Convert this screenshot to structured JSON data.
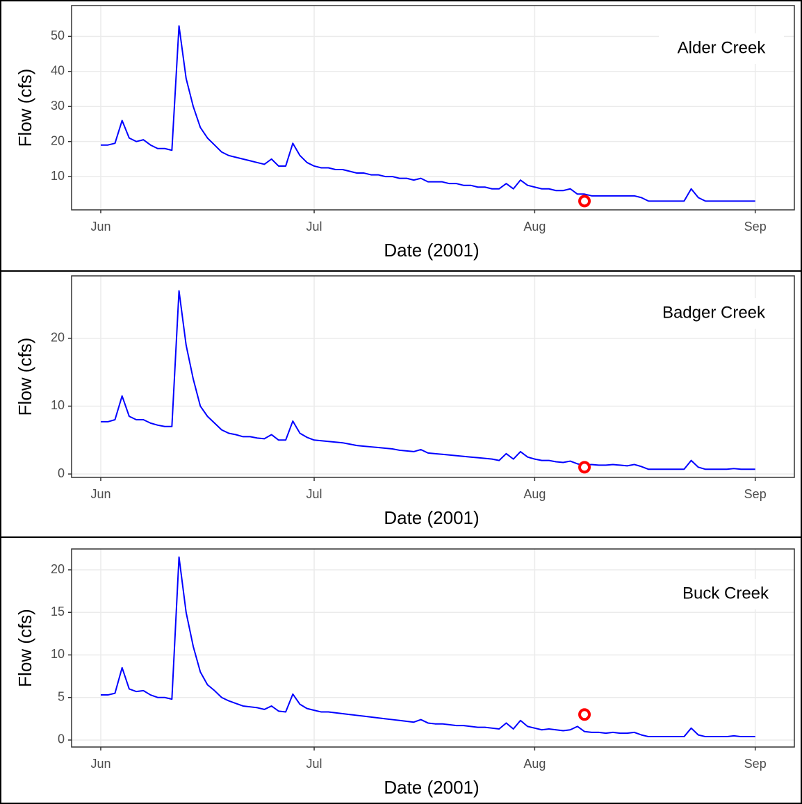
{
  "chart_data": [
    {
      "type": "line",
      "annotation": "Alder Creek",
      "xlabel": "Date (2001)",
      "ylabel": "Flow (cfs)",
      "xlim": [
        -4.1,
        97.5
      ],
      "xticks": [
        {
          "value": 0,
          "label": "Jun"
        },
        {
          "value": 30,
          "label": "Jul"
        },
        {
          "value": 61,
          "label": "Aug"
        },
        {
          "value": 92,
          "label": "Sep"
        }
      ],
      "ylim": [
        0.5,
        58.8
      ],
      "yticks": [
        10,
        20,
        30,
        40,
        50
      ],
      "grid": true,
      "series": [
        {
          "color": "#0000ff",
          "x": [
            0,
            1,
            2,
            3,
            4,
            5,
            6,
            7,
            8,
            9,
            10,
            11,
            12,
            13,
            14,
            15,
            16,
            17,
            18,
            19,
            20,
            21,
            22,
            23,
            24,
            25,
            26,
            27,
            28,
            29,
            30,
            31,
            32,
            33,
            34,
            35,
            36,
            37,
            38,
            39,
            40,
            41,
            42,
            43,
            44,
            45,
            46,
            47,
            48,
            49,
            50,
            51,
            52,
            53,
            54,
            55,
            56,
            57,
            58,
            59,
            60,
            61,
            62,
            63,
            64,
            65,
            66,
            67,
            68,
            69,
            70,
            71,
            72,
            73,
            74,
            75,
            76,
            77,
            78,
            79,
            80,
            81,
            82,
            83,
            84,
            85,
            86,
            87,
            88,
            89,
            90,
            91,
            92
          ],
          "values": [
            19,
            19,
            19.5,
            26,
            21,
            20,
            20.5,
            19,
            18,
            18,
            17.5,
            53,
            38,
            30,
            24,
            21,
            19,
            17,
            16,
            15.5,
            15,
            14.5,
            14,
            13.5,
            15,
            13,
            13,
            19.5,
            16,
            14,
            13,
            12.5,
            12.5,
            12,
            12,
            11.5,
            11,
            11,
            10.5,
            10.5,
            10,
            10,
            9.5,
            9.5,
            9,
            9.5,
            8.5,
            8.5,
            8.5,
            8,
            8,
            7.5,
            7.5,
            7,
            7,
            6.5,
            6.5,
            8,
            6.5,
            9,
            7.5,
            7,
            6.5,
            6.5,
            6,
            6,
            6.5,
            5,
            5,
            4.5,
            4.5,
            4.5,
            4.5,
            4.5,
            4.5,
            4.5,
            4,
            3,
            3,
            3,
            3,
            3,
            3,
            6.5,
            4,
            3,
            3,
            3,
            3,
            3,
            3,
            3,
            3
          ]
        },
        {
          "type": "point",
          "color": "#ff0000",
          "x": [
            68
          ],
          "values": [
            3
          ]
        }
      ]
    },
    {
      "type": "line",
      "annotation": "Badger Creek",
      "xlabel": "Date (2001)",
      "ylabel": "Flow (cfs)",
      "xlim": [
        -4.1,
        97.5
      ],
      "xticks": [
        {
          "value": 0,
          "label": "Jun"
        },
        {
          "value": 30,
          "label": "Jul"
        },
        {
          "value": 61,
          "label": "Aug"
        },
        {
          "value": 92,
          "label": "Sep"
        }
      ],
      "ylim": [
        -0.5,
        29.2
      ],
      "yticks": [
        0,
        10,
        20
      ],
      "grid": true,
      "series": [
        {
          "color": "#0000ff",
          "x": [
            0,
            1,
            2,
            3,
            4,
            5,
            6,
            7,
            8,
            9,
            10,
            11,
            12,
            13,
            14,
            15,
            16,
            17,
            18,
            19,
            20,
            21,
            22,
            23,
            24,
            25,
            26,
            27,
            28,
            29,
            30,
            31,
            32,
            33,
            34,
            35,
            36,
            37,
            38,
            39,
            40,
            41,
            42,
            43,
            44,
            45,
            46,
            47,
            48,
            49,
            50,
            51,
            52,
            53,
            54,
            55,
            56,
            57,
            58,
            59,
            60,
            61,
            62,
            63,
            64,
            65,
            66,
            67,
            68,
            69,
            70,
            71,
            72,
            73,
            74,
            75,
            76,
            77,
            78,
            79,
            80,
            81,
            82,
            83,
            84,
            85,
            86,
            87,
            88,
            89,
            90,
            91,
            92
          ],
          "values": [
            7.7,
            7.7,
            8,
            11.5,
            8.5,
            8,
            8,
            7.5,
            7.2,
            7,
            7,
            27,
            19,
            14,
            10,
            8.5,
            7.5,
            6.5,
            6,
            5.8,
            5.5,
            5.5,
            5.3,
            5.2,
            5.8,
            5,
            5,
            7.8,
            6,
            5.4,
            5,
            4.9,
            4.8,
            4.7,
            4.6,
            4.4,
            4.2,
            4.1,
            4,
            3.9,
            3.8,
            3.7,
            3.5,
            3.4,
            3.3,
            3.6,
            3.1,
            3,
            2.9,
            2.8,
            2.7,
            2.6,
            2.5,
            2.4,
            2.3,
            2.2,
            2,
            3,
            2.2,
            3.3,
            2.5,
            2.2,
            2,
            2,
            1.8,
            1.7,
            1.9,
            1.5,
            1.3,
            1.4,
            1.3,
            1.3,
            1.4,
            1.3,
            1.2,
            1.4,
            1.1,
            0.7,
            0.7,
            0.7,
            0.7,
            0.7,
            0.7,
            2,
            1,
            0.7,
            0.7,
            0.7,
            0.7,
            0.8,
            0.7,
            0.7,
            0.7
          ]
        },
        {
          "type": "point",
          "color": "#ff0000",
          "x": [
            68
          ],
          "values": [
            1
          ]
        }
      ]
    },
    {
      "type": "line",
      "annotation": "Buck Creek",
      "xlabel": "Date (2001)",
      "ylabel": "Flow (cfs)",
      "xlim": [
        -4.1,
        97.5
      ],
      "xticks": [
        {
          "value": 0,
          "label": "Jun"
        },
        {
          "value": 30,
          "label": "Jul"
        },
        {
          "value": 61,
          "label": "Aug"
        },
        {
          "value": 92,
          "label": "Sep"
        }
      ],
      "ylim": [
        -0.82,
        22.45
      ],
      "yticks": [
        0,
        5,
        10,
        15,
        20
      ],
      "grid": true,
      "series": [
        {
          "color": "#0000ff",
          "x": [
            0,
            1,
            2,
            3,
            4,
            5,
            6,
            7,
            8,
            9,
            10,
            11,
            12,
            13,
            14,
            15,
            16,
            17,
            18,
            19,
            20,
            21,
            22,
            23,
            24,
            25,
            26,
            27,
            28,
            29,
            30,
            31,
            32,
            33,
            34,
            35,
            36,
            37,
            38,
            39,
            40,
            41,
            42,
            43,
            44,
            45,
            46,
            47,
            48,
            49,
            50,
            51,
            52,
            53,
            54,
            55,
            56,
            57,
            58,
            59,
            60,
            61,
            62,
            63,
            64,
            65,
            66,
            67,
            68,
            69,
            70,
            71,
            72,
            73,
            74,
            75,
            76,
            77,
            78,
            79,
            80,
            81,
            82,
            83,
            84,
            85,
            86,
            87,
            88,
            89,
            90,
            91,
            92
          ],
          "values": [
            5.3,
            5.3,
            5.5,
            8.5,
            6,
            5.7,
            5.8,
            5.3,
            5,
            5,
            4.8,
            21.5,
            15,
            11,
            8,
            6.5,
            5.8,
            5,
            4.6,
            4.3,
            4,
            3.9,
            3.8,
            3.6,
            4,
            3.4,
            3.3,
            5.4,
            4.2,
            3.7,
            3.5,
            3.3,
            3.3,
            3.2,
            3.1,
            3,
            2.9,
            2.8,
            2.7,
            2.6,
            2.5,
            2.4,
            2.3,
            2.2,
            2.1,
            2.4,
            2,
            1.9,
            1.9,
            1.8,
            1.7,
            1.7,
            1.6,
            1.5,
            1.5,
            1.4,
            1.3,
            2,
            1.3,
            2.3,
            1.6,
            1.4,
            1.2,
            1.3,
            1.2,
            1.1,
            1.2,
            1.6,
            1,
            0.9,
            0.9,
            0.8,
            0.9,
            0.8,
            0.8,
            0.9,
            0.6,
            0.4,
            0.4,
            0.4,
            0.4,
            0.4,
            0.4,
            1.4,
            0.6,
            0.4,
            0.4,
            0.4,
            0.4,
            0.5,
            0.4,
            0.4,
            0.4
          ]
        },
        {
          "type": "point",
          "color": "#ff0000",
          "x": [
            68
          ],
          "values": [
            3
          ]
        }
      ]
    }
  ]
}
